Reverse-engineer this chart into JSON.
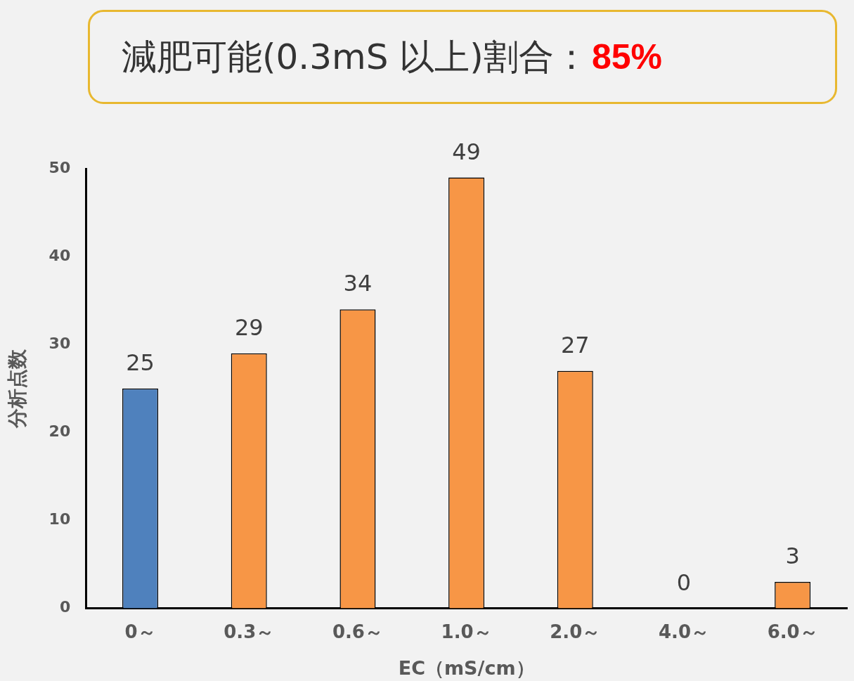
{
  "chart_data": {
    "type": "bar",
    "title": "減肥可能(0.3mS 以上)割合：",
    "annotations": [
      "85%"
    ],
    "categories": [
      "0～",
      "0.3～",
      "0.6～",
      "1.0～",
      "2.0～",
      "4.0～",
      "6.0～"
    ],
    "values": [
      25,
      29,
      34,
      49,
      27,
      0,
      3
    ],
    "colors": [
      "#4f81bd",
      "#f79646",
      "#f79646",
      "#f79646",
      "#f79646",
      "#f79646",
      "#f79646"
    ],
    "xlabel": "EC（mS/cm）",
    "ylabel": "分析点数",
    "ylim": [
      0,
      50
    ],
    "yticks": [
      0,
      10,
      20,
      30,
      40,
      50
    ],
    "grid": false,
    "legend": false,
    "data_labels": true
  }
}
